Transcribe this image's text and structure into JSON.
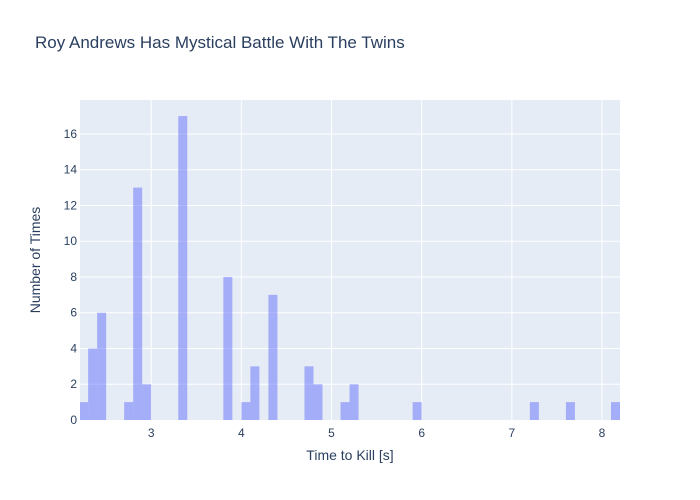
{
  "chart_data": {
    "type": "bar",
    "title": "Roy Andrews Has Mystical Battle With The Twins",
    "xlabel": "Time to Kill [s]",
    "ylabel": "Number of Times",
    "xlim": [
      2.21,
      8.2
    ],
    "ylim": [
      0,
      17.9
    ],
    "x_ticks": [
      3,
      4,
      5,
      6,
      7,
      8
    ],
    "y_ticks": [
      0,
      2,
      4,
      6,
      8,
      10,
      12,
      14,
      16
    ],
    "bin_width": 0.1,
    "bins": [
      {
        "x0": 2.2,
        "value": 1
      },
      {
        "x0": 2.3,
        "value": 4
      },
      {
        "x0": 2.4,
        "value": 6
      },
      {
        "x0": 2.7,
        "value": 1
      },
      {
        "x0": 2.8,
        "value": 13
      },
      {
        "x0": 2.9,
        "value": 2
      },
      {
        "x0": 3.3,
        "value": 17
      },
      {
        "x0": 3.8,
        "value": 8
      },
      {
        "x0": 4.0,
        "value": 1
      },
      {
        "x0": 4.1,
        "value": 3
      },
      {
        "x0": 4.3,
        "value": 7
      },
      {
        "x0": 4.7,
        "value": 3
      },
      {
        "x0": 4.8,
        "value": 2
      },
      {
        "x0": 5.1,
        "value": 1
      },
      {
        "x0": 5.2,
        "value": 2
      },
      {
        "x0": 5.9,
        "value": 1
      },
      {
        "x0": 7.2,
        "value": 1
      },
      {
        "x0": 7.6,
        "value": 1
      },
      {
        "x0": 8.1,
        "value": 1
      }
    ],
    "grid": true,
    "colors": {
      "bar": "#636efa",
      "bar_opacity": 0.5,
      "plot_background": "#e5ecf6",
      "grid": "#ffffff",
      "text": "#2a3f5f"
    }
  }
}
